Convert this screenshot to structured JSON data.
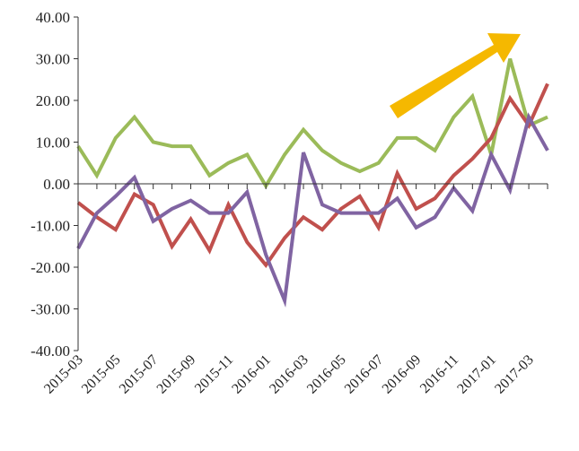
{
  "chart_data": {
    "type": "line",
    "title": "",
    "xlabel": "",
    "ylabel": "",
    "ylim": [
      -40,
      40
    ],
    "yticks": [
      40,
      30,
      20,
      10,
      0,
      -10,
      -20,
      -30,
      -40
    ],
    "ytick_labels": [
      "40.00",
      "30.00",
      "20.00",
      "10.00",
      "0.00",
      "-10.00",
      "-20.00",
      "-30.00",
      "-40.00"
    ],
    "x": [
      "2015-03",
      "2015-04",
      "2015-05",
      "2015-06",
      "2015-07",
      "2015-08",
      "2015-09",
      "2015-10",
      "2015-11",
      "2015-12",
      "2016-01",
      "2016-02",
      "2016-03",
      "2016-04",
      "2016-05",
      "2016-06",
      "2016-07",
      "2016-08",
      "2016-09",
      "2016-10",
      "2016-11",
      "2016-12",
      "2017-01",
      "2017-02",
      "2017-03",
      "2017-04"
    ],
    "xtick_labels": [
      "2015-03",
      "2015-05",
      "2015-07",
      "2015-09",
      "2015-11",
      "2016-01",
      "2016-03",
      "2016-05",
      "2016-07",
      "2016-09",
      "2016-11",
      "2017-01",
      "2017-03"
    ],
    "grid": false,
    "legend": "none",
    "series": [
      {
        "color": "#9bbb59",
        "values": [
          9,
          2,
          11,
          16,
          10,
          9,
          9,
          2,
          5,
          7,
          -0.5,
          7,
          13,
          8,
          5,
          3,
          5,
          11,
          11,
          8,
          16,
          21,
          7,
          30,
          14,
          16
        ]
      },
      {
        "color": "#c0504d",
        "values": [
          -4.5,
          -8,
          -11,
          -2.5,
          -5,
          -15,
          -8.5,
          -16,
          -5,
          -14,
          -19.5,
          -13,
          -8,
          -11,
          -6,
          -3,
          -10.5,
          2.5,
          -6,
          -3.5,
          2,
          6,
          11,
          20.5,
          14,
          24
        ]
      },
      {
        "color": "#8064a2",
        "values": [
          -15.5,
          -7,
          -3,
          1.5,
          -9,
          -6,
          -4,
          -7,
          -7,
          -2,
          -17,
          -28,
          7.5,
          -5,
          -7,
          -7,
          -7,
          -3.5,
          -10.5,
          -8,
          -1,
          -6.5,
          7,
          -1.5,
          16,
          8
        ]
      }
    ],
    "annotations": [
      {
        "type": "arrow",
        "color": "#f5b800",
        "direction": "up-right"
      }
    ]
  }
}
